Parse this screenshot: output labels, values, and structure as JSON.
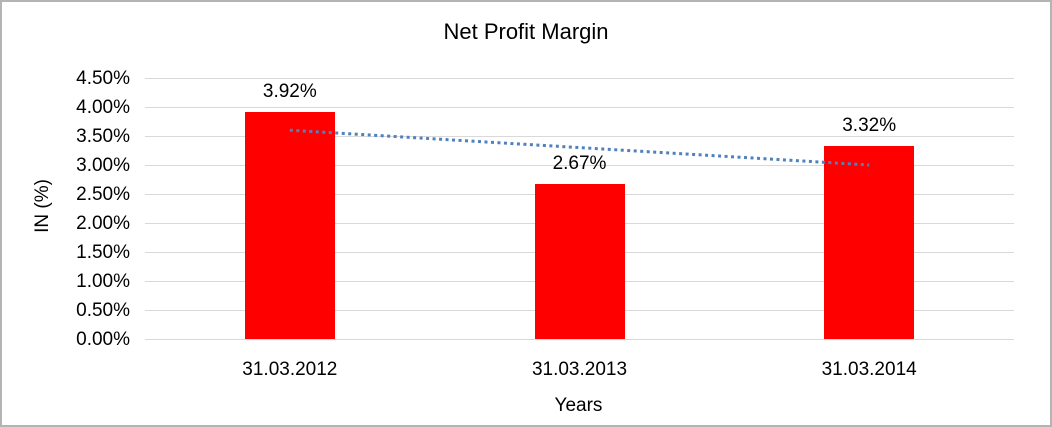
{
  "chart_data": {
    "type": "bar",
    "title": "Net Profit Margin",
    "xlabel": "Years",
    "ylabel": "IN (%)",
    "categories": [
      "31.03.2012",
      "31.03.2013",
      "31.03.2014"
    ],
    "values": [
      3.92,
      2.67,
      3.32
    ],
    "value_labels": [
      "3.92%",
      "2.67%",
      "3.32%"
    ],
    "ylim": [
      0,
      4.5
    ],
    "ytick_step": 0.5,
    "ytick_labels": [
      "0.00%",
      "0.50%",
      "1.00%",
      "1.50%",
      "2.00%",
      "2.50%",
      "3.00%",
      "3.50%",
      "4.00%",
      "4.50%"
    ],
    "grid": true,
    "legend": false,
    "colors": {
      "bar": "#ff0000",
      "gridline": "#d9d9d9",
      "text": "#000000",
      "trendline": "#4f81bd",
      "frame_border": "#b4b4b4"
    },
    "trendline": {
      "type": "linear",
      "style": "dotted",
      "color": "#4f81bd",
      "start_value": 3.6,
      "end_value": 3.0
    }
  }
}
